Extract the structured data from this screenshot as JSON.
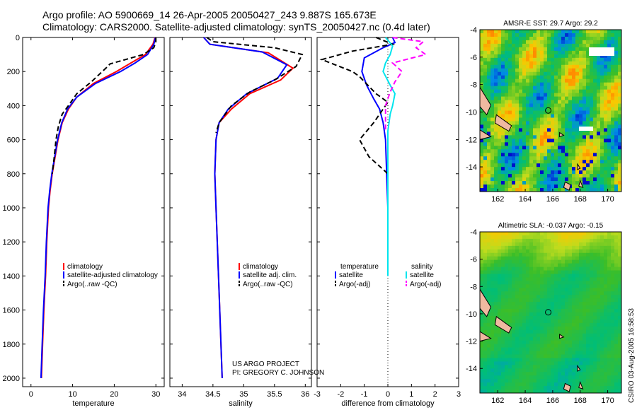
{
  "header": {
    "line1": "Argo profile: AO 5900669_14 26-Apr-2005 20050427_243 9.887S 165.673E",
    "line2": "Climatology: CARS2000. Satellite-adjusted climatology: synTS_20050427.nc (0.4d later)"
  },
  "credit": {
    "line1": "US ARGO PROJECT",
    "line2": "PI: GREGORY C. JOHNSON"
  },
  "stamp": "CSIRO 03-Aug-2005 16:58:53",
  "colors": {
    "red": "#ff0000",
    "blue": "#0000ff",
    "black": "#000000",
    "cyan": "#00e5ee",
    "magenta": "#ff00ff",
    "land": "#f0b9a0"
  },
  "chart_data": [
    {
      "id": "temperature",
      "type": "line",
      "xlabel": "temperature",
      "ylabel": "",
      "xlim": [
        -2,
        32
      ],
      "ylim": [
        2050,
        0
      ],
      "xticks": [
        0,
        10,
        20,
        30
      ],
      "yticks": [
        0,
        200,
        400,
        600,
        800,
        1000,
        1200,
        1400,
        1600,
        1800,
        2000
      ],
      "legend": [
        "climatology",
        "satellite-adjusted climatology",
        "Argo(..raw -QC)"
      ],
      "series": [
        {
          "name": "climatology",
          "color": "red",
          "dash": false,
          "points": [
            [
              29.8,
              0
            ],
            [
              29.3,
              40
            ],
            [
              27.5,
              100
            ],
            [
              24,
              150
            ],
            [
              20.5,
              200
            ],
            [
              15,
              270
            ],
            [
              11,
              350
            ],
            [
              9,
              420
            ],
            [
              7.5,
              500
            ],
            [
              6.5,
              600
            ],
            [
              5.8,
              700
            ],
            [
              5.1,
              800
            ],
            [
              4.6,
              900
            ],
            [
              4.2,
              1000
            ],
            [
              3.8,
              1200
            ],
            [
              3.5,
              1400
            ],
            [
              3.1,
              1600
            ],
            [
              2.8,
              1800
            ],
            [
              2.5,
              2000
            ]
          ]
        },
        {
          "name": "satellite-adjusted climatology",
          "color": "blue",
          "dash": false,
          "points": [
            [
              29.9,
              0
            ],
            [
              29.5,
              40
            ],
            [
              28,
              100
            ],
            [
              25,
              150
            ],
            [
              21.5,
              200
            ],
            [
              15.5,
              270
            ],
            [
              11,
              350
            ],
            [
              8.8,
              420
            ],
            [
              7.4,
              500
            ],
            [
              6.4,
              600
            ],
            [
              5.7,
              700
            ],
            [
              5,
              800
            ],
            [
              4.5,
              900
            ],
            [
              4.1,
              1000
            ],
            [
              3.7,
              1200
            ],
            [
              3.4,
              1400
            ],
            [
              3,
              1600
            ],
            [
              2.7,
              1800
            ],
            [
              2.4,
              2000
            ]
          ]
        },
        {
          "name": "Argo(..raw -QC)",
          "color": "black",
          "dash": true,
          "points": [
            [
              30,
              0
            ],
            [
              30,
              25
            ],
            [
              29.5,
              60
            ],
            [
              27,
              100
            ],
            [
              19,
              155
            ],
            [
              18,
              180
            ],
            [
              14.5,
              260
            ],
            [
              11,
              330
            ],
            [
              9,
              400
            ],
            [
              7.5,
              450
            ],
            [
              6.6,
              520
            ],
            [
              6,
              600
            ],
            [
              5.6,
              700
            ],
            [
              5.1,
              800
            ]
          ]
        }
      ]
    },
    {
      "id": "salinity",
      "type": "line",
      "xlabel": "salinity",
      "ylabel": "",
      "xlim": [
        33.8,
        36.1
      ],
      "ylim": [
        2050,
        0
      ],
      "xticks": [
        34,
        34.5,
        35,
        35.5,
        36
      ],
      "xticklabels": [
        "34",
        "34.5",
        "35",
        "35.5",
        "36"
      ],
      "legend": [
        "climatology",
        "satellite adj. clim.",
        "Argo(..raw -QC)"
      ],
      "series": [
        {
          "name": "climatology",
          "color": "red",
          "dash": false,
          "points": [
            [
              34.35,
              0
            ],
            [
              34.45,
              40
            ],
            [
              35.4,
              90
            ],
            [
              35.8,
              180
            ],
            [
              35.6,
              250
            ],
            [
              35.1,
              330
            ],
            [
              34.8,
              420
            ],
            [
              34.6,
              500
            ],
            [
              34.55,
              600
            ],
            [
              34.53,
              800
            ],
            [
              34.55,
              1000
            ],
            [
              34.6,
              1500
            ],
            [
              34.65,
              2000
            ]
          ]
        },
        {
          "name": "satellite adj. clim.",
          "color": "blue",
          "dash": false,
          "points": [
            [
              34.35,
              0
            ],
            [
              34.45,
              40
            ],
            [
              35.3,
              85
            ],
            [
              35.7,
              160
            ],
            [
              35.55,
              240
            ],
            [
              35.05,
              330
            ],
            [
              34.75,
              420
            ],
            [
              34.6,
              500
            ],
            [
              34.55,
              600
            ],
            [
              34.53,
              800
            ],
            [
              34.55,
              1000
            ],
            [
              34.6,
              1500
            ],
            [
              34.65,
              2000
            ]
          ]
        },
        {
          "name": "Argo(..raw -QC)",
          "color": "black",
          "dash": true,
          "points": [
            [
              34.4,
              0
            ],
            [
              34.5,
              25
            ],
            [
              35.5,
              60
            ],
            [
              35.95,
              100
            ],
            [
              35.85,
              170
            ],
            [
              35.5,
              250
            ],
            [
              35.1,
              320
            ],
            [
              34.8,
              400
            ],
            [
              34.6,
              500
            ],
            [
              34.55,
              560
            ]
          ]
        }
      ]
    },
    {
      "id": "difference",
      "type": "line",
      "xlabel": "difference from climatology",
      "ylabel": "",
      "xlim": [
        -3,
        3
      ],
      "ylim": [
        2050,
        0
      ],
      "xticks": [
        -3,
        -2,
        -1,
        0,
        1,
        2,
        3
      ],
      "legend": [
        "temperature",
        "satellite",
        "Argo(-adj)",
        "salinity",
        "satellite",
        "Argo(-adj)"
      ],
      "series": [
        {
          "name": "temperature satellite",
          "color": "blue",
          "dash": false,
          "points": [
            [
              0.2,
              0
            ],
            [
              0.3,
              30
            ],
            [
              -0.2,
              60
            ],
            [
              -1,
              120
            ],
            [
              -1.1,
              200
            ],
            [
              -0.9,
              280
            ],
            [
              -0.6,
              360
            ],
            [
              -0.35,
              420
            ],
            [
              -0.2,
              500
            ],
            [
              -0.1,
              600
            ],
            [
              -0.05,
              800
            ],
            [
              0,
              1000
            ],
            [
              0,
              1400
            ]
          ]
        },
        {
          "name": "temperature Argo(-adj)",
          "color": "black",
          "dash": true,
          "points": [
            [
              -0.5,
              0
            ],
            [
              0.2,
              40
            ],
            [
              -1.5,
              80
            ],
            [
              -2.8,
              130
            ],
            [
              -1.5,
              200
            ],
            [
              -1.2,
              230
            ],
            [
              -0.5,
              330
            ],
            [
              0,
              380
            ],
            [
              -0.6,
              500
            ],
            [
              -1.2,
              600
            ],
            [
              -0.8,
              700
            ],
            [
              0,
              800
            ]
          ]
        },
        {
          "name": "salinity satellite",
          "color": "cyan",
          "dash": false,
          "points": [
            [
              -0.1,
              0
            ],
            [
              0.2,
              50
            ],
            [
              0.1,
              100
            ],
            [
              -0.1,
              150
            ],
            [
              -0.2,
              200
            ],
            [
              0.1,
              280
            ],
            [
              0.3,
              330
            ],
            [
              0.2,
              400
            ],
            [
              0.1,
              450
            ],
            [
              0,
              550
            ],
            [
              0,
              700
            ],
            [
              0,
              900
            ],
            [
              0,
              1400
            ]
          ]
        },
        {
          "name": "salinity Argo(-adj)",
          "color": "magenta",
          "dash": true,
          "points": [
            [
              0.2,
              0
            ],
            [
              1.5,
              25
            ],
            [
              1.2,
              60
            ],
            [
              1.6,
              100
            ],
            [
              0.2,
              150
            ],
            [
              0.6,
              200
            ],
            [
              0.3,
              260
            ],
            [
              0.1,
              320
            ],
            [
              -0.1,
              400
            ],
            [
              -0.1,
              540
            ]
          ]
        }
      ]
    },
    {
      "id": "sst-map",
      "type": "heatmap",
      "title": "AMSR-E SST: 29.7 Argo: 29.2",
      "xlim": [
        160.7,
        171
      ],
      "ylim": [
        -15.8,
        -4
      ],
      "xticks": [
        162,
        164,
        166,
        168,
        170
      ],
      "yticks": [
        -4,
        -6,
        -8,
        -10,
        -12,
        -14
      ],
      "marker": {
        "lon": 165.673,
        "lat": -9.887
      }
    },
    {
      "id": "sla-map",
      "type": "heatmap",
      "title": "Altimetric SLA: -0.037 Argo: -0.15",
      "xlim": [
        160.7,
        171
      ],
      "ylim": [
        -15.8,
        -4
      ],
      "xticks": [
        162,
        164,
        166,
        168,
        170
      ],
      "yticks": [
        -4,
        -6,
        -8,
        -10,
        -12,
        -14
      ],
      "marker": {
        "lon": 165.673,
        "lat": -9.887
      }
    }
  ]
}
